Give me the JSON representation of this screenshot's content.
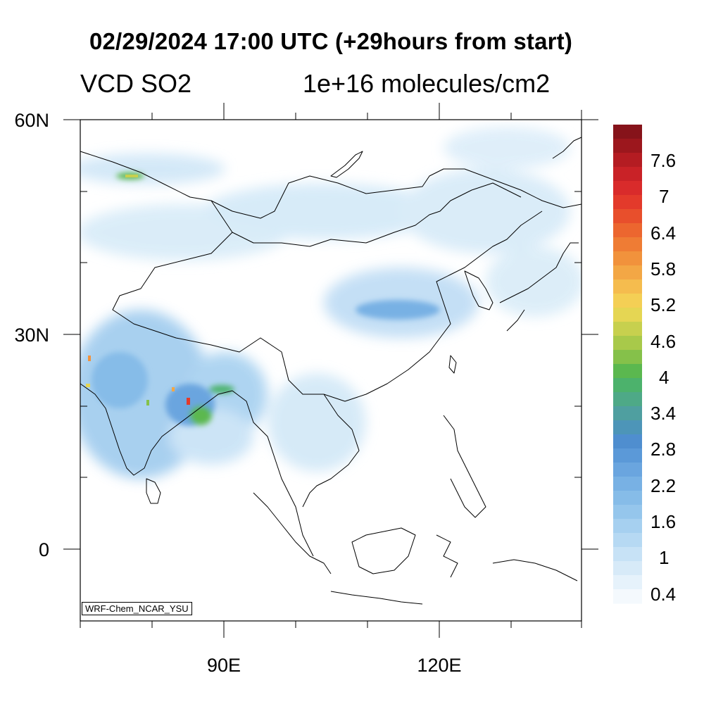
{
  "header": {
    "title": "02/29/2024 17:00 UTC (+29hours from start)",
    "variable": "VCD SO2",
    "units": "1e+16 molecules/cm2"
  },
  "map": {
    "lat_ticks": [
      "60N",
      "30N",
      "0"
    ],
    "lon_ticks": [
      "90E",
      "120E"
    ],
    "model_tag": "WRF-Chem_NCAR_YSU"
  },
  "colorbar": {
    "labels": [
      "7.6",
      "7",
      "6.4",
      "5.8",
      "5.2",
      "4.6",
      "4",
      "3.4",
      "2.8",
      "2.2",
      "1.6",
      "1",
      "0.4"
    ],
    "colors": [
      "#f4f9fd",
      "#e6f2fb",
      "#d7eaf8",
      "#c7e2f6",
      "#b6d9f3",
      "#a6d0f0",
      "#95c6ec",
      "#86bce8",
      "#78b1e4",
      "#6aa5df",
      "#5b99d8",
      "#4f8ecf",
      "#4d95b8",
      "#4f9fa0",
      "#4ea987",
      "#4cb26c",
      "#5bb84f",
      "#85c14a",
      "#a8c94a",
      "#c7d04e",
      "#e5d653",
      "#f4cf55",
      "#f5bc4e",
      "#f3a745",
      "#f1923c",
      "#ef7c34",
      "#ec662f",
      "#e84f2c",
      "#e33a2b",
      "#d92b2b",
      "#c92227",
      "#b41c22",
      "#9c171d",
      "#86131a"
    ]
  },
  "colors": {
    "land_background": "#ffffff",
    "coast_line": "#000000",
    "low_so2": "#cde6f7",
    "mid_so2": "#5b99d8",
    "high_so2": "#4cb26c",
    "peak_so2": "#e33a2b"
  }
}
